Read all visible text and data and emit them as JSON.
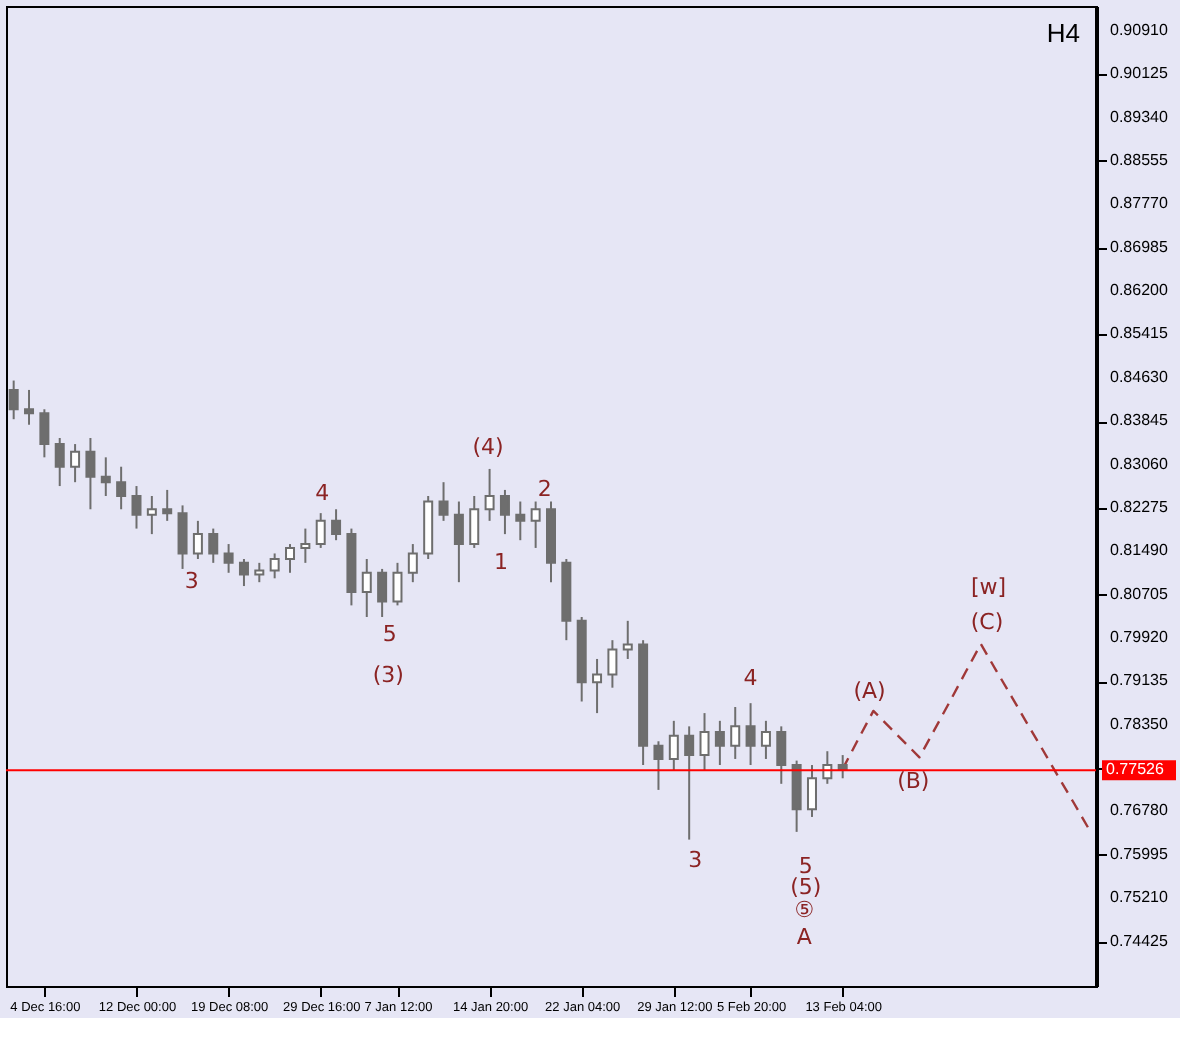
{
  "chart_data": {
    "type": "candlestick",
    "color": "#6e6e6e",
    "categories": [
      null,
      null,
      "4 Dec 16:00",
      null,
      null,
      null,
      null,
      null,
      "12 Dec 00:00",
      null,
      null,
      null,
      null,
      null,
      "19 Dec 08:00",
      null,
      null,
      null,
      null,
      null,
      "29 Dec 16:00",
      null,
      null,
      null,
      null,
      "7 Jan 12:00",
      null,
      null,
      null,
      null,
      null,
      "14 Jan 20:00",
      null,
      null,
      null,
      null,
      null,
      "22 Jan 04:00",
      null,
      null,
      null,
      null,
      null,
      "29 Jan 12:00",
      null,
      null,
      null,
      null,
      "5 Feb 20:00",
      null,
      null,
      null,
      null,
      null,
      "13 Feb 04:00",
      null,
      null,
      null,
      null,
      null,
      null,
      null,
      null,
      null,
      null,
      null,
      null,
      null,
      null,
      null,
      null
    ],
    "ohlc": [
      [
        0.8441,
        0.8458,
        0.8388,
        0.8406
      ],
      [
        0.8406,
        0.8441,
        0.8378,
        0.8399
      ],
      [
        0.8399,
        0.8406,
        0.8319,
        0.8343
      ],
      [
        0.8343,
        0.8354,
        0.8267,
        0.8302
      ],
      [
        0.8302,
        0.8343,
        0.8274,
        0.8329
      ],
      [
        0.8329,
        0.8354,
        0.8225,
        0.8284
      ],
      [
        0.8284,
        0.8319,
        0.8249,
        0.8274
      ],
      [
        0.8274,
        0.8302,
        0.8225,
        0.8249
      ],
      [
        0.8249,
        0.8267,
        0.819,
        0.8215
      ],
      [
        0.8215,
        0.8249,
        0.818,
        0.8225
      ],
      [
        0.8225,
        0.826,
        0.8204,
        0.8218
      ],
      [
        0.8218,
        0.8232,
        0.8117,
        0.8145
      ],
      [
        0.8145,
        0.8204,
        0.8135,
        0.818
      ],
      [
        0.818,
        0.819,
        0.8128,
        0.8145
      ],
      [
        0.8145,
        0.8162,
        0.811,
        0.8128
      ],
      [
        0.8128,
        0.8135,
        0.8086,
        0.8107
      ],
      [
        0.8107,
        0.8128,
        0.8093,
        0.8114
      ],
      [
        0.8114,
        0.8145,
        0.81,
        0.8135
      ],
      [
        0.8135,
        0.8162,
        0.811,
        0.8155
      ],
      [
        0.8155,
        0.819,
        0.8128,
        0.8162
      ],
      [
        0.8162,
        0.8218,
        0.8155,
        0.8204
      ],
      [
        0.8204,
        0.8225,
        0.8169,
        0.818
      ],
      [
        0.818,
        0.819,
        0.8051,
        0.8075
      ],
      [
        0.8075,
        0.8135,
        0.803,
        0.811
      ],
      [
        0.811,
        0.8117,
        0.803,
        0.8058
      ],
      [
        0.8058,
        0.8128,
        0.8051,
        0.811
      ],
      [
        0.811,
        0.8162,
        0.8093,
        0.8145
      ],
      [
        0.8145,
        0.8249,
        0.8135,
        0.8239
      ],
      [
        0.8239,
        0.8274,
        0.8204,
        0.8215
      ],
      [
        0.8215,
        0.8239,
        0.8093,
        0.8162
      ],
      [
        0.8162,
        0.8249,
        0.8155,
        0.8225
      ],
      [
        0.8225,
        0.8298,
        0.8204,
        0.8249
      ],
      [
        0.8249,
        0.826,
        0.818,
        0.8215
      ],
      [
        0.8215,
        0.8239,
        0.8169,
        0.8204
      ],
      [
        0.8204,
        0.8239,
        0.8155,
        0.8225
      ],
      [
        0.8225,
        0.8239,
        0.8093,
        0.8128
      ],
      [
        0.8128,
        0.8135,
        0.7988,
        0.8023
      ],
      [
        0.8023,
        0.803,
        0.7877,
        0.7912
      ],
      [
        0.7912,
        0.7954,
        0.7856,
        0.7926
      ],
      [
        0.7926,
        0.7988,
        0.7902,
        0.7971
      ],
      [
        0.7971,
        0.8023,
        0.7954,
        0.798
      ],
      [
        0.798,
        0.7988,
        0.7762,
        0.7797
      ],
      [
        0.7797,
        0.7805,
        0.7717,
        0.7773
      ],
      [
        0.7773,
        0.7842,
        0.7752,
        0.7815
      ],
      [
        0.7815,
        0.7832,
        0.7627,
        0.778
      ],
      [
        0.778,
        0.7856,
        0.7752,
        0.7822
      ],
      [
        0.7822,
        0.7842,
        0.7762,
        0.7797
      ],
      [
        0.7797,
        0.7867,
        0.7773,
        0.7832
      ],
      [
        0.7832,
        0.7874,
        0.7762,
        0.7797
      ],
      [
        0.7797,
        0.7842,
        0.7773,
        0.7822
      ],
      [
        0.7822,
        0.7832,
        0.7728,
        0.7762
      ],
      [
        0.7762,
        0.777,
        0.7641,
        0.7682
      ],
      [
        0.7682,
        0.7762,
        0.7668,
        0.7738
      ],
      [
        0.7738,
        0.7787,
        0.7728,
        0.7762
      ],
      [
        0.7762,
        0.778,
        0.7738,
        0.7755
      ],
      null,
      null,
      null,
      null,
      null,
      null,
      null,
      null,
      null,
      null,
      null,
      null,
      null,
      null,
      null,
      null
    ],
    "series": [
      {
        "type": "line",
        "color": "#a03838",
        "line_style": "dashed",
        "values": [
          null,
          null,
          null,
          null,
          null,
          null,
          null,
          null,
          null,
          null,
          null,
          null,
          null,
          null,
          null,
          null,
          null,
          null,
          null,
          null,
          null,
          null,
          null,
          null,
          null,
          null,
          null,
          null,
          null,
          null,
          null,
          null,
          null,
          null,
          null,
          null,
          null,
          null,
          null,
          null,
          null,
          null,
          null,
          null,
          null,
          null,
          null,
          null,
          null,
          null,
          null,
          null,
          null,
          null,
          0.7755,
          0.7808,
          0.786,
          0.7832,
          0.7804,
          0.7776,
          0.7827,
          0.7878,
          0.793,
          0.7981,
          0.7933,
          0.7886,
          0.7838,
          0.7791,
          0.7743,
          0.7696,
          0.7648
        ]
      }
    ],
    "ylim": [
      0.7362,
      0.9136
    ],
    "yticks": [
      {
        "value": 0.9091,
        "label": "0.90910"
      },
      0.90125,
      {
        "value": 0.8934,
        "label": "0.89340"
      },
      0.88555,
      {
        "value": 0.8777,
        "label": "0.87770"
      },
      0.86985,
      {
        "value": 0.862,
        "label": "0.86200"
      },
      0.85415,
      {
        "value": 0.8463,
        "label": "0.84630"
      },
      0.83845,
      {
        "value": 0.8306,
        "label": "0.83060"
      },
      0.82275,
      {
        "value": 0.8149,
        "label": "0.81490"
      },
      0.80705,
      {
        "value": 0.7992,
        "label": "0.79920"
      },
      0.79135,
      {
        "value": 0.7835,
        "label": "0.78350"
      },
      0.77565,
      {
        "value": 0.7678,
        "label": "0.76780"
      },
      0.75995,
      {
        "value": 0.7521,
        "label": "0.75210"
      },
      0.74425
    ],
    "ref_lines": [
      {
        "axis": "y",
        "value": 0.77526,
        "label": "0.77526",
        "color": "#ff0000"
      }
    ],
    "grid": false,
    "annotations": [
      "H4",
      "3",
      "4",
      "5",
      "(3)",
      "(4)",
      "1",
      "2",
      "3",
      {
        "text": "4",
        "y": 0.7874
      },
      "5",
      "(5)",
      "⑤",
      "A",
      "(A)",
      "(B)",
      "(C)",
      "[w]"
    ]
  }
}
